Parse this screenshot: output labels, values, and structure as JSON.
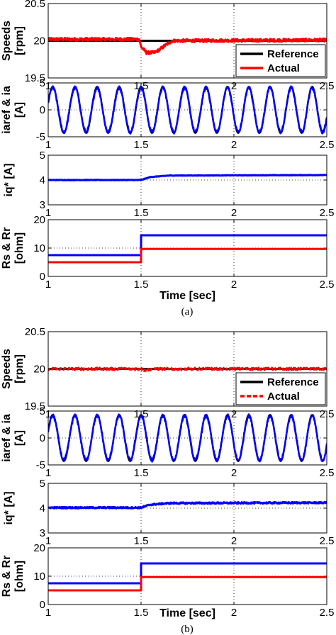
{
  "chart_data": [
    {
      "figure": "(a)",
      "xlabel": "Time [sec]",
      "panels": [
        {
          "type": "line",
          "ylabel": [
            "Speeds",
            "[rpm]"
          ],
          "xlim": [
            1,
            2.5
          ],
          "ylim": [
            19.5,
            20.5
          ],
          "xticks": [
            "1",
            "1.5",
            "2",
            "2.5"
          ],
          "yticks": [
            "19.5",
            "20",
            "20.5"
          ],
          "grid": "dotted",
          "legend": {
            "position": "bottom-right",
            "entries": [
              "Reference",
              "Actual"
            ]
          },
          "series": [
            {
              "name": "Reference",
              "color": "#000000",
              "style": "solid",
              "x": [
                1,
                2.5
              ],
              "y": [
                20,
                20
              ]
            },
            {
              "name": "Actual",
              "color": "#ff0000",
              "style": "solid",
              "noise": 0.02,
              "x": [
                1,
                1.49,
                1.5,
                1.53,
                1.57,
                1.6,
                1.63,
                1.67,
                2.5
              ],
              "y": [
                20.02,
                20.02,
                19.92,
                19.84,
                19.84,
                19.88,
                19.94,
                20.0,
                20.01
              ]
            }
          ]
        },
        {
          "type": "line",
          "ylabel": [
            "iaref & ia",
            "[A]"
          ],
          "xlim": [
            1,
            2.5
          ],
          "ylim": [
            -5,
            5
          ],
          "xticks": [
            "1",
            "1.5",
            "2",
            "2.5"
          ],
          "yticks": [
            "-5",
            "0",
            "5"
          ],
          "grid": "dotted",
          "series": [
            {
              "name": "iaref",
              "color": "#000000",
              "style": "solid",
              "waveform": "sine",
              "amplitude": 4.3,
              "frequency_hz": [
                8.3,
                8.9
              ],
              "x": [
                1,
                2.5
              ]
            },
            {
              "name": "ia",
              "color": "#0000ff",
              "style": "solid",
              "waveform": "sine",
              "amplitude": 4.1,
              "frequency_hz": [
                8.3,
                8.9
              ],
              "noise": 0.35,
              "x": [
                1,
                2.5
              ]
            }
          ]
        },
        {
          "type": "line",
          "ylabel": [
            "iq* [A]"
          ],
          "xlim": [
            1,
            2.5
          ],
          "ylim": [
            3,
            5
          ],
          "xticks": [
            "1",
            "1.5",
            "2",
            "2.5"
          ],
          "yticks": [
            "3",
            "4",
            "5"
          ],
          "grid": "dotted",
          "series": [
            {
              "name": "iq*",
              "color": "#0000ff",
              "style": "solid",
              "noise": 0.01,
              "x": [
                1,
                1.5,
                1.55,
                1.65,
                2.5
              ],
              "y": [
                4.0,
                4.0,
                4.12,
                4.18,
                4.2
              ]
            }
          ]
        },
        {
          "type": "line",
          "ylabel": [
            "Rs & Rr",
            "[ohm]"
          ],
          "xlim": [
            1,
            2.5
          ],
          "ylim": [
            0,
            20
          ],
          "xticks": [
            "1",
            "1.5",
            "2",
            "2.5"
          ],
          "yticks": [
            "0",
            "10",
            "20"
          ],
          "grid": "dotted",
          "series": [
            {
              "name": "Rs",
              "color": "#0000ff",
              "style": "solid",
              "x": [
                1,
                1.5,
                1.5,
                2.5
              ],
              "y": [
                7.5,
                7.5,
                14.5,
                14.5
              ]
            },
            {
              "name": "Rr",
              "color": "#ff0000",
              "style": "solid",
              "x": [
                1,
                1.5,
                1.5,
                2.5
              ],
              "y": [
                5,
                5,
                9.7,
                9.7
              ]
            }
          ]
        }
      ]
    },
    {
      "figure": "(b)",
      "xlabel": "Time [sec]",
      "panels": [
        {
          "type": "line",
          "ylabel": [
            "Speeds",
            "[rpm]"
          ],
          "xlim": [
            1,
            2.5
          ],
          "ylim": [
            19.5,
            20.5
          ],
          "xticks": [
            "1",
            "1.5",
            "2",
            "2.5"
          ],
          "yticks": [
            "19.5",
            "20",
            "20.5"
          ],
          "grid": "dotted",
          "legend": {
            "position": "bottom-right",
            "entries": [
              "Reference",
              "Actual"
            ]
          },
          "series": [
            {
              "name": "Reference",
              "color": "#000000",
              "style": "solid",
              "x": [
                1,
                2.5
              ],
              "y": [
                20,
                20
              ]
            },
            {
              "name": "Actual",
              "color": "#ff0000",
              "style": "dashed",
              "noise": 0.015,
              "x": [
                1,
                1.5,
                1.52,
                1.56,
                2.5
              ],
              "y": [
                20.0,
                20.0,
                19.98,
                20.0,
                20.0
              ]
            }
          ]
        },
        {
          "type": "line",
          "ylabel": [
            "iaref & ia",
            "[A]"
          ],
          "xlim": [
            1,
            2.5
          ],
          "ylim": [
            -5,
            5
          ],
          "xticks": [
            "1",
            "1.5",
            "2",
            "2.5"
          ],
          "yticks": [
            "-5",
            "0",
            "5"
          ],
          "grid": "dotted",
          "series": [
            {
              "name": "iaref",
              "color": "#000000",
              "style": "solid",
              "waveform": "sine",
              "amplitude": 4.3,
              "frequency_hz": [
                8.3,
                8.9
              ],
              "x": [
                1,
                2.5
              ]
            },
            {
              "name": "ia",
              "color": "#0000ff",
              "style": "solid",
              "waveform": "sine",
              "amplitude": 4.1,
              "frequency_hz": [
                8.3,
                8.9
              ],
              "noise": 0.35,
              "x": [
                1,
                2.5
              ]
            }
          ]
        },
        {
          "type": "line",
          "ylabel": [
            "iq* [A]"
          ],
          "xlim": [
            1,
            2.5
          ],
          "ylim": [
            3,
            5
          ],
          "xticks": [
            "1",
            "1.5",
            "2",
            "2.5"
          ],
          "yticks": [
            "3",
            "4",
            "5"
          ],
          "grid": "dotted",
          "series": [
            {
              "name": "iq*",
              "color": "#0000ff",
              "style": "solid",
              "noise": 0.03,
              "x": [
                1,
                1.5,
                1.55,
                1.65,
                2.5
              ],
              "y": [
                4.02,
                4.02,
                4.14,
                4.2,
                4.22
              ]
            }
          ]
        },
        {
          "type": "line",
          "ylabel": [
            "Rs & Rr",
            "[ohm]"
          ],
          "xlim": [
            1,
            2.5
          ],
          "ylim": [
            0,
            20
          ],
          "xticks": [
            "1",
            "1.5",
            "2",
            "2.5"
          ],
          "yticks": [
            "0",
            "10",
            "20"
          ],
          "grid": "dotted",
          "series": [
            {
              "name": "Rs",
              "color": "#0000ff",
              "style": "solid",
              "x": [
                1,
                1.5,
                1.5,
                2.5
              ],
              "y": [
                7.5,
                7.5,
                14.5,
                14.5
              ]
            },
            {
              "name": "Rr",
              "color": "#ff0000",
              "style": "solid",
              "x": [
                1,
                1.5,
                1.5,
                2.5
              ],
              "y": [
                5,
                5,
                9.7,
                9.7
              ]
            }
          ]
        }
      ]
    }
  ]
}
